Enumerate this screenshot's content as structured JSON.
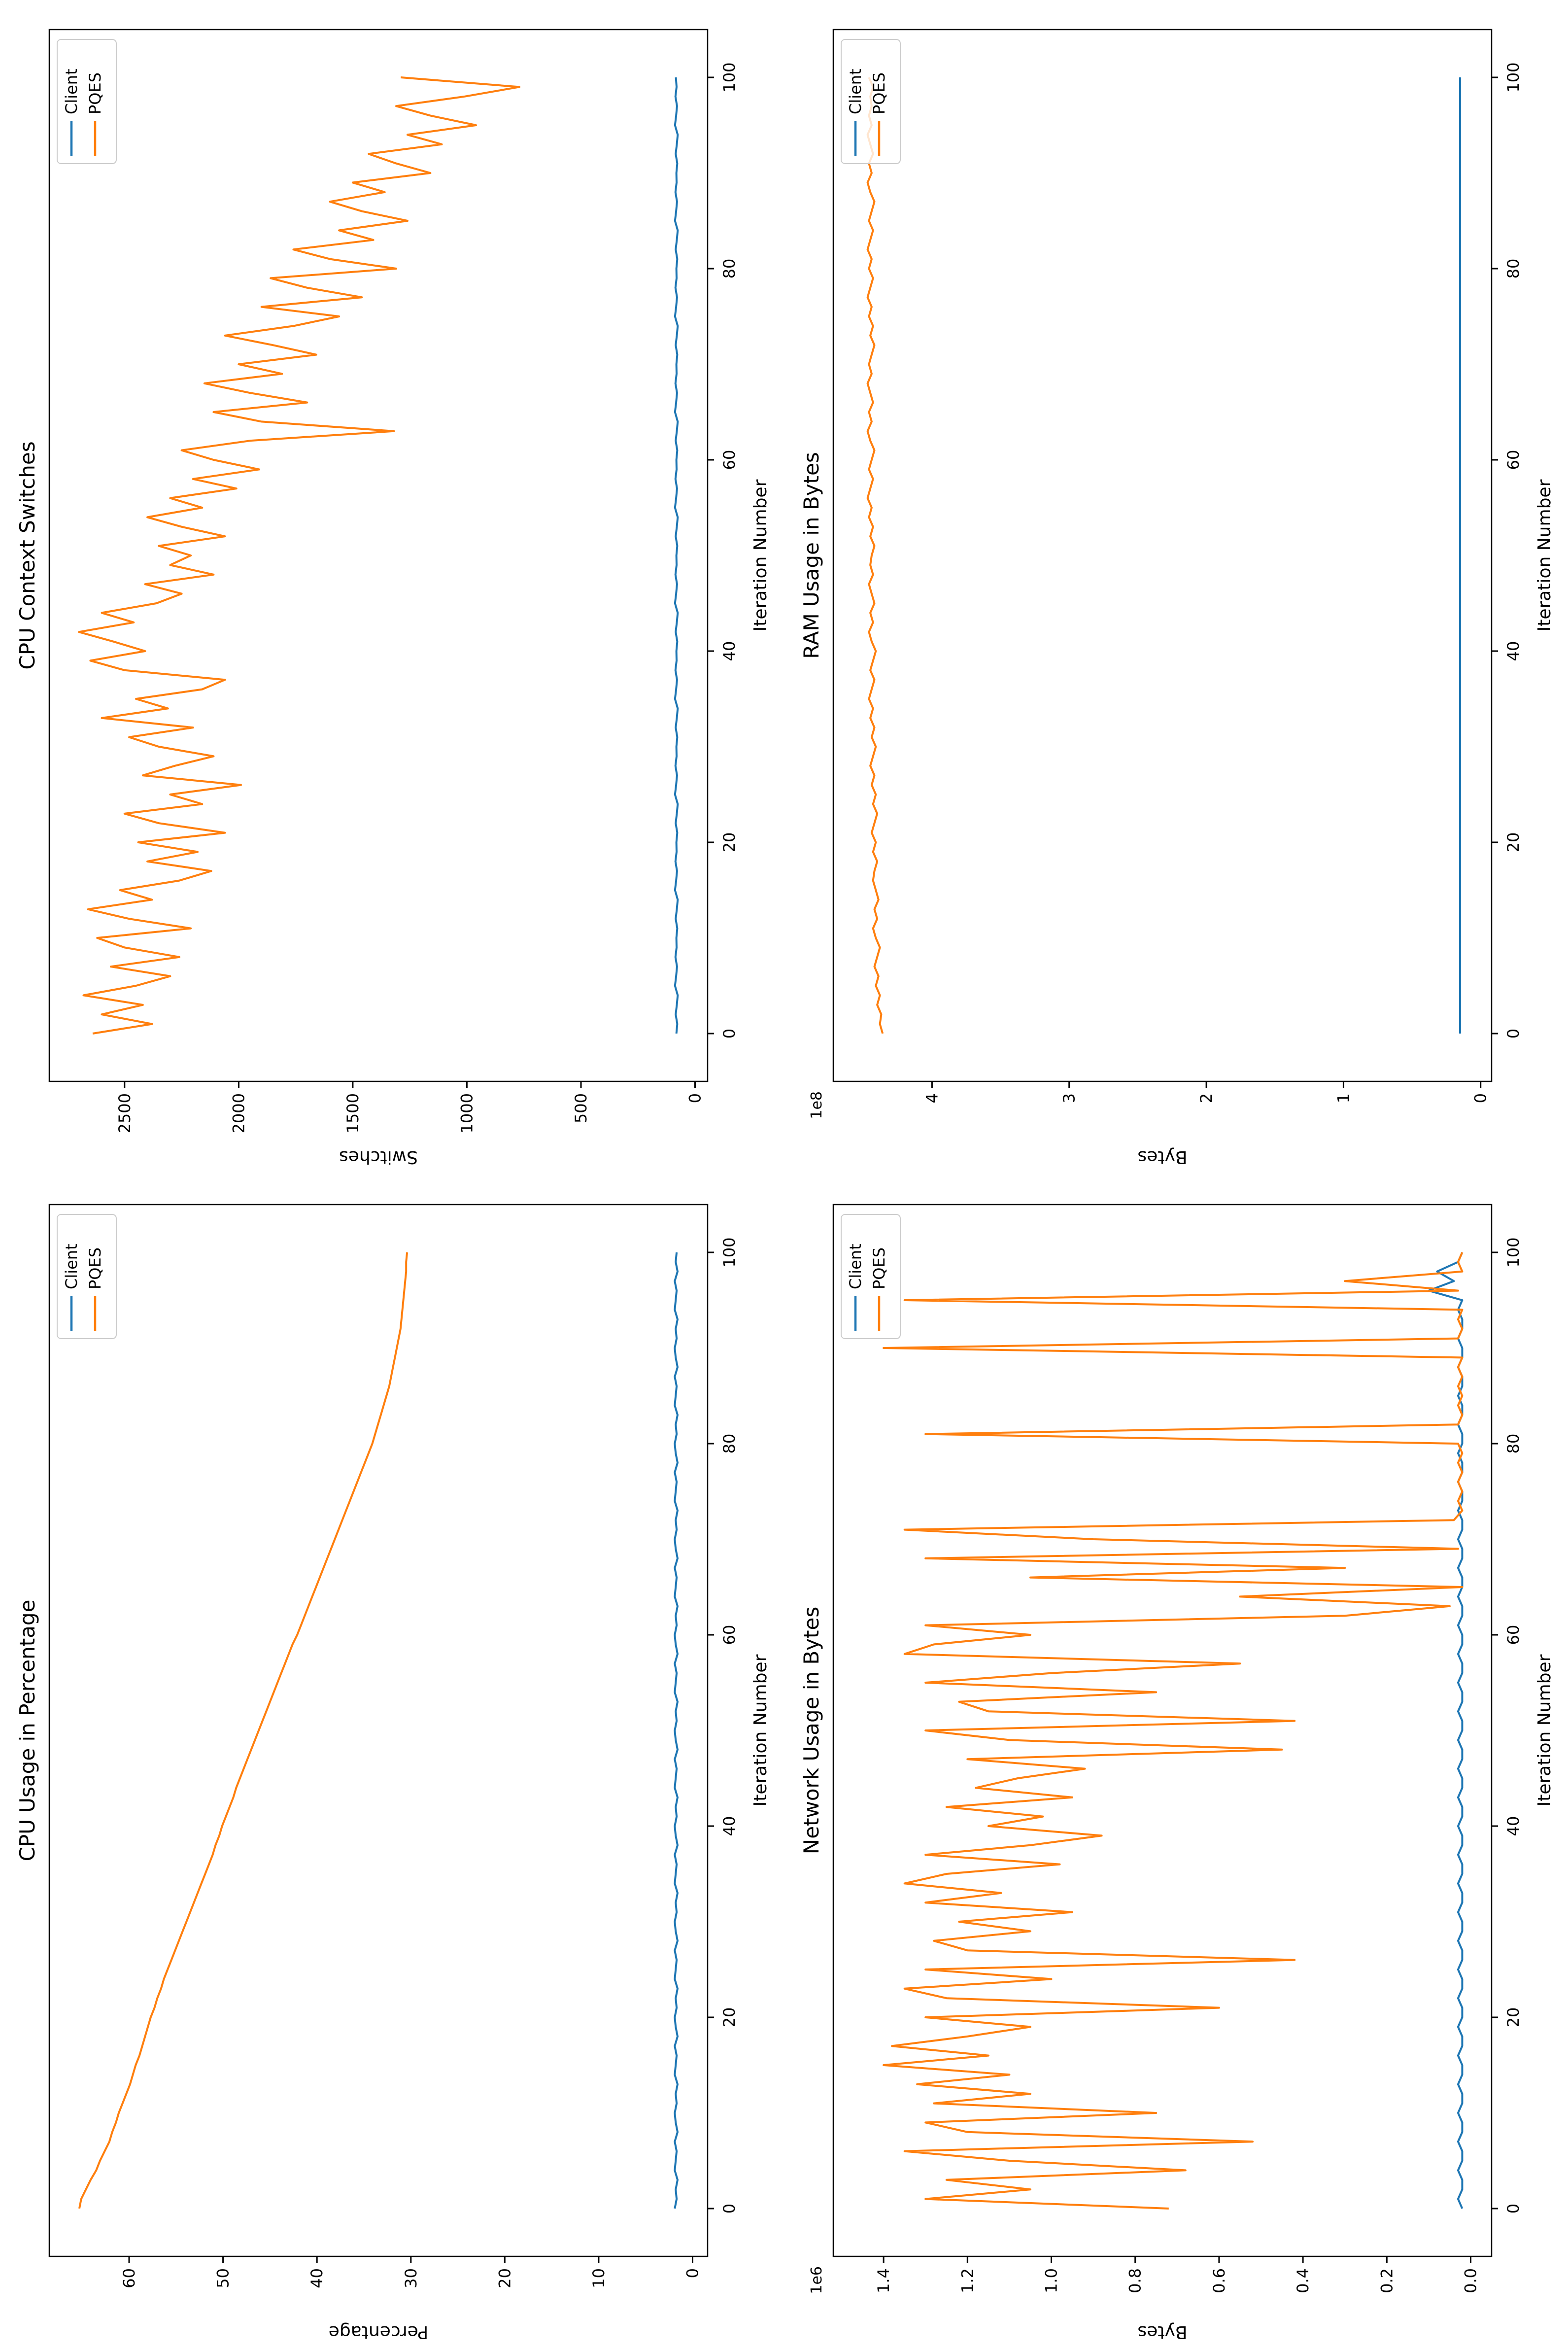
{
  "figure": {
    "background": "#ffffff"
  },
  "colors": {
    "client": "#1f77b4",
    "pqes": "#ff7f0e"
  },
  "chart_data": [
    {
      "type": "line",
      "title": "CPU Usage in Percentage",
      "xlabel": "Iteration Number",
      "ylabel": "Percentage",
      "xlim": [
        -5,
        105
      ],
      "ylim": [
        -1.6,
        68.5
      ],
      "xticks": [
        0,
        20,
        40,
        60,
        80,
        100
      ],
      "xtick_labels": [
        "0",
        "20",
        "40",
        "60",
        "80",
        "100"
      ],
      "yticks": [
        0,
        10,
        20,
        30,
        40,
        50,
        60
      ],
      "ytick_labels": [
        "0",
        "10",
        "20",
        "30",
        "40",
        "50",
        "60"
      ],
      "offset_text": "",
      "legend_position": "upper right",
      "grid": false,
      "series": [
        {
          "name": "Client",
          "color": "#1f77b4",
          "values": [
            1.9,
            1.7,
            1.8,
            1.6,
            1.9,
            1.8,
            1.7,
            1.9,
            1.6,
            1.8,
            1.9,
            1.7,
            1.8,
            1.6,
            1.9,
            1.8,
            1.7,
            1.9,
            1.6,
            1.8,
            1.9,
            1.7,
            1.8,
            1.6,
            1.9,
            1.8,
            1.7,
            1.9,
            1.6,
            1.8,
            1.9,
            1.7,
            1.8,
            1.6,
            1.9,
            1.8,
            1.7,
            1.9,
            1.6,
            1.8,
            1.9,
            1.7,
            1.8,
            1.6,
            1.9,
            1.8,
            1.7,
            1.9,
            1.6,
            1.8,
            1.9,
            1.7,
            1.8,
            1.6,
            1.9,
            1.8,
            1.7,
            1.9,
            1.6,
            1.8,
            1.9,
            1.7,
            1.8,
            1.6,
            1.9,
            1.8,
            1.7,
            1.9,
            1.6,
            1.8,
            1.9,
            1.7,
            1.8,
            1.6,
            1.9,
            1.8,
            1.7,
            1.9,
            1.6,
            1.8,
            1.9,
            1.7,
            1.8,
            1.6,
            1.9,
            1.8,
            1.7,
            1.9,
            1.6,
            1.8,
            1.9,
            1.7,
            1.8,
            1.6,
            1.9,
            1.8,
            1.7,
            1.9,
            1.6,
            1.8,
            1.7
          ]
        },
        {
          "name": "PQES",
          "color": "#ff7f0e",
          "values": [
            65.3,
            65.1,
            64.6,
            64.1,
            63.5,
            63.1,
            62.6,
            62.1,
            61.8,
            61.4,
            61.1,
            60.7,
            60.3,
            59.9,
            59.6,
            59.3,
            58.9,
            58.6,
            58.3,
            58.0,
            57.7,
            57.3,
            57.0,
            56.6,
            56.3,
            55.9,
            55.5,
            55.1,
            54.7,
            54.3,
            53.9,
            53.5,
            53.1,
            52.7,
            52.3,
            51.9,
            51.5,
            51.1,
            50.8,
            50.4,
            50.1,
            49.7,
            49.3,
            48.9,
            48.6,
            48.2,
            47.8,
            47.4,
            47.0,
            46.6,
            46.2,
            45.8,
            45.4,
            45.0,
            44.6,
            44.2,
            43.8,
            43.4,
            43.0,
            42.6,
            42.1,
            41.7,
            41.3,
            40.9,
            40.5,
            40.1,
            39.7,
            39.3,
            38.9,
            38.5,
            38.1,
            37.7,
            37.3,
            36.9,
            36.5,
            36.1,
            35.7,
            35.3,
            34.9,
            34.5,
            34.1,
            33.8,
            33.5,
            33.2,
            32.9,
            32.6,
            32.3,
            32.1,
            31.9,
            31.7,
            31.5,
            31.3,
            31.1,
            31.0,
            30.9,
            30.8,
            30.7,
            30.6,
            30.5,
            30.5,
            30.4
          ]
        }
      ]
    },
    {
      "type": "line",
      "title": "CPU Context Switches",
      "xlabel": "Iteration Number",
      "ylabel": "Switches",
      "xlim": [
        -5,
        105
      ],
      "ylim": [
        -55,
        2830
      ],
      "xticks": [
        0,
        20,
        40,
        60,
        80,
        100
      ],
      "xtick_labels": [
        "0",
        "20",
        "40",
        "60",
        "80",
        "100"
      ],
      "yticks": [
        0,
        500,
        1000,
        1500,
        2000,
        2500
      ],
      "ytick_labels": [
        "0",
        "500",
        "1000",
        "1500",
        "2000",
        "2500"
      ],
      "offset_text": "",
      "legend_position": "upper right",
      "grid": false,
      "series": [
        {
          "name": "Client",
          "color": "#1f77b4",
          "values": [
            82,
            78,
            85,
            80,
            76,
            88,
            83,
            79,
            86,
            81,
            82,
            78,
            85,
            80,
            76,
            88,
            83,
            79,
            86,
            81,
            82,
            78,
            85,
            80,
            76,
            88,
            83,
            79,
            86,
            81,
            82,
            78,
            85,
            80,
            76,
            88,
            83,
            79,
            86,
            81,
            82,
            78,
            85,
            80,
            76,
            88,
            83,
            79,
            86,
            81,
            82,
            78,
            85,
            80,
            76,
            88,
            83,
            79,
            86,
            81,
            82,
            78,
            85,
            80,
            76,
            88,
            83,
            79,
            86,
            81,
            82,
            78,
            85,
            80,
            76,
            88,
            83,
            79,
            86,
            81,
            82,
            78,
            85,
            80,
            76,
            88,
            83,
            79,
            86,
            81,
            82,
            78,
            85,
            80,
            76,
            88,
            83,
            79,
            86,
            81,
            84
          ]
        },
        {
          "name": "PQES",
          "color": "#ff7f0e",
          "values": [
            2640,
            2380,
            2600,
            2420,
            2680,
            2450,
            2300,
            2560,
            2260,
            2500,
            2620,
            2210,
            2480,
            2660,
            2380,
            2520,
            2260,
            2120,
            2400,
            2180,
            2440,
            2060,
            2350,
            2500,
            2160,
            2300,
            1990,
            2420,
            2280,
            2110,
            2350,
            2480,
            2200,
            2600,
            2310,
            2450,
            2160,
            2060,
            2500,
            2650,
            2410,
            2550,
            2700,
            2460,
            2600,
            2360,
            2250,
            2410,
            2110,
            2300,
            2210,
            2350,
            2060,
            2250,
            2400,
            2160,
            2300,
            2010,
            2200,
            1910,
            2110,
            2250,
            1950,
            1320,
            1900,
            2110,
            1700,
            1950,
            2150,
            1810,
            2000,
            1660,
            1850,
            2060,
            1760,
            1560,
            1900,
            1460,
            1700,
            1860,
            1310,
            1600,
            1760,
            1410,
            1560,
            1260,
            1460,
            1600,
            1360,
            1500,
            1160,
            1310,
            1430,
            1110,
            1260,
            960,
            1160,
            1310,
            1010,
            770,
            1290
          ]
        }
      ]
    },
    {
      "type": "line",
      "title": "Network Usage in Bytes",
      "xlabel": "Iteration Number",
      "ylabel": "Bytes",
      "xlim": [
        -5,
        105
      ],
      "ylim": [
        -0.05,
        1.52
      ],
      "xticks": [
        0,
        20,
        40,
        60,
        80,
        100
      ],
      "xtick_labels": [
        "0",
        "20",
        "40",
        "60",
        "80",
        "100"
      ],
      "yticks": [
        0.0,
        0.2,
        0.4,
        0.6,
        0.8,
        1.0,
        1.2,
        1.4
      ],
      "ytick_labels": [
        "0.0",
        "0.2",
        "0.4",
        "0.6",
        "0.8",
        "1.0",
        "1.2",
        "1.4"
      ],
      "offset_text": "1e6",
      "legend_position": "upper right",
      "grid": false,
      "series": [
        {
          "name": "Client",
          "color": "#1f77b4",
          "values": [
            0.02,
            0.03,
            0.02,
            0.02,
            0.03,
            0.02,
            0.02,
            0.03,
            0.02,
            0.02,
            0.03,
            0.02,
            0.02,
            0.03,
            0.02,
            0.02,
            0.03,
            0.02,
            0.02,
            0.03,
            0.02,
            0.02,
            0.03,
            0.02,
            0.02,
            0.03,
            0.02,
            0.02,
            0.03,
            0.02,
            0.02,
            0.03,
            0.02,
            0.02,
            0.03,
            0.02,
            0.02,
            0.03,
            0.02,
            0.02,
            0.03,
            0.02,
            0.02,
            0.03,
            0.02,
            0.02,
            0.03,
            0.02,
            0.02,
            0.03,
            0.02,
            0.02,
            0.03,
            0.02,
            0.02,
            0.03,
            0.02,
            0.02,
            0.03,
            0.02,
            0.02,
            0.03,
            0.02,
            0.02,
            0.03,
            0.02,
            0.02,
            0.03,
            0.02,
            0.02,
            0.03,
            0.02,
            0.02,
            0.03,
            0.02,
            0.02,
            0.03,
            0.02,
            0.02,
            0.03,
            0.02,
            0.02,
            0.03,
            0.02,
            0.02,
            0.03,
            0.02,
            0.02,
            0.03,
            0.02,
            0.02,
            0.03,
            0.02,
            0.02,
            0.03,
            0.02,
            0.1,
            0.04,
            0.08,
            0.03,
            0.02
          ]
        },
        {
          "name": "PQES",
          "color": "#ff7f0e",
          "values": [
            0.72,
            1.3,
            1.05,
            1.25,
            0.68,
            1.1,
            1.35,
            0.52,
            1.2,
            1.3,
            0.75,
            1.28,
            1.05,
            1.32,
            1.1,
            1.4,
            1.15,
            1.38,
            1.2,
            1.05,
            1.3,
            0.6,
            1.25,
            1.35,
            1.0,
            1.3,
            0.42,
            1.2,
            1.28,
            1.05,
            1.22,
            0.95,
            1.3,
            1.12,
            1.35,
            1.25,
            0.98,
            1.3,
            1.05,
            0.88,
            1.15,
            1.02,
            1.25,
            0.95,
            1.18,
            1.08,
            0.92,
            1.2,
            0.45,
            1.1,
            1.3,
            0.42,
            1.15,
            1.22,
            0.75,
            1.3,
            1.0,
            0.55,
            1.35,
            1.28,
            1.05,
            1.3,
            0.3,
            0.05,
            0.55,
            0.02,
            1.05,
            0.3,
            1.3,
            0.03,
            0.9,
            1.35,
            0.04,
            0.02,
            0.03,
            0.02,
            0.03,
            0.02,
            0.03,
            0.02,
            0.03,
            1.3,
            0.03,
            0.02,
            0.03,
            0.02,
            0.03,
            0.02,
            0.03,
            0.02,
            1.4,
            0.03,
            0.02,
            0.03,
            0.02,
            1.35,
            0.03,
            0.3,
            0.02,
            0.03,
            0.02
          ]
        }
      ]
    },
    {
      "type": "line",
      "title": "RAM Usage in Bytes",
      "xlabel": "Iteration Number",
      "ylabel": "Bytes",
      "xlim": [
        -5,
        105
      ],
      "ylim": [
        -0.08,
        4.72
      ],
      "xticks": [
        0,
        20,
        40,
        60,
        80,
        100
      ],
      "xtick_labels": [
        "0",
        "20",
        "40",
        "60",
        "80",
        "100"
      ],
      "yticks": [
        0,
        1,
        2,
        3,
        4
      ],
      "ytick_labels": [
        "0",
        "1",
        "2",
        "3",
        "4"
      ],
      "offset_text": "1e8",
      "legend_position": "upper right",
      "grid": false,
      "series": [
        {
          "name": "Client",
          "color": "#1f77b4",
          "values": [
            0.15,
            0.15,
            0.15,
            0.15,
            0.15,
            0.15,
            0.15,
            0.15,
            0.15,
            0.15,
            0.15,
            0.15,
            0.15,
            0.15,
            0.15,
            0.15,
            0.15,
            0.15,
            0.15,
            0.15,
            0.15,
            0.15,
            0.15,
            0.15,
            0.15,
            0.15,
            0.15,
            0.15,
            0.15,
            0.15,
            0.15,
            0.15,
            0.15,
            0.15,
            0.15,
            0.15,
            0.15,
            0.15,
            0.15,
            0.15,
            0.15,
            0.15,
            0.15,
            0.15,
            0.15,
            0.15,
            0.15,
            0.15,
            0.15,
            0.15,
            0.15,
            0.15,
            0.15,
            0.15,
            0.15,
            0.15,
            0.15,
            0.15,
            0.15,
            0.15,
            0.15,
            0.15,
            0.15,
            0.15,
            0.15,
            0.15,
            0.15,
            0.15,
            0.15,
            0.15,
            0.15,
            0.15,
            0.15,
            0.15,
            0.15,
            0.15,
            0.15,
            0.15,
            0.15,
            0.15,
            0.15,
            0.15,
            0.15,
            0.15,
            0.15,
            0.15,
            0.15,
            0.15,
            0.15,
            0.15,
            0.15,
            0.15,
            0.15,
            0.15,
            0.15,
            0.15,
            0.15,
            0.15,
            0.15,
            0.15,
            0.15
          ]
        },
        {
          "name": "PQES",
          "color": "#ff7f0e",
          "values": [
            4.36,
            4.38,
            4.37,
            4.4,
            4.38,
            4.41,
            4.39,
            4.42,
            4.4,
            4.38,
            4.41,
            4.43,
            4.4,
            4.42,
            4.39,
            4.41,
            4.43,
            4.42,
            4.4,
            4.43,
            4.41,
            4.44,
            4.42,
            4.4,
            4.43,
            4.41,
            4.44,
            4.42,
            4.45,
            4.43,
            4.41,
            4.44,
            4.42,
            4.45,
            4.43,
            4.46,
            4.44,
            4.42,
            4.45,
            4.43,
            4.41,
            4.44,
            4.46,
            4.43,
            4.45,
            4.42,
            4.44,
            4.46,
            4.43,
            4.45,
            4.44,
            4.42,
            4.45,
            4.43,
            4.46,
            4.44,
            4.47,
            4.45,
            4.43,
            4.46,
            4.44,
            4.42,
            4.45,
            4.47,
            4.44,
            4.46,
            4.43,
            4.45,
            4.47,
            4.44,
            4.46,
            4.44,
            4.42,
            4.45,
            4.43,
            4.46,
            4.44,
            4.47,
            4.45,
            4.43,
            4.46,
            4.44,
            4.47,
            4.45,
            4.43,
            4.46,
            4.44,
            4.42,
            4.45,
            4.47,
            4.44,
            4.46,
            4.43,
            4.45,
            4.47,
            4.44,
            4.46,
            4.44,
            4.45,
            4.43,
            4.46
          ]
        }
      ]
    }
  ]
}
